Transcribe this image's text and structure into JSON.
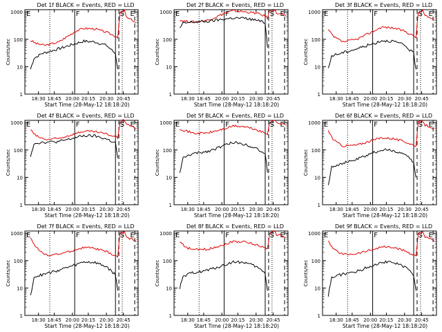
{
  "chart_data": {
    "type": "line",
    "common": {
      "ylabel": "Counts/sec",
      "xlabel": "Start Time (28-May-12 18:18:20)",
      "xticks": [
        "18:30",
        "18:45",
        "20:00",
        "20:15",
        "20:30",
        "20:45"
      ],
      "yticks": [
        "1",
        "10",
        "100",
        "1000"
      ],
      "ylim": [
        1,
        1200
      ],
      "y_scale": "log",
      "markers": [
        "F",
        "S",
        "E"
      ],
      "series_colors": {
        "events": "#000000",
        "lld": "#e00000"
      }
    },
    "panels": [
      {
        "title": "Det 1f BLACK = Events, RED = LLD",
        "events": [
          [
            0.05,
            8
          ],
          [
            0.08,
            20
          ],
          [
            0.15,
            30
          ],
          [
            0.3,
            45
          ],
          [
            0.45,
            70
          ],
          [
            0.52,
            85
          ],
          [
            0.62,
            80
          ],
          [
            0.72,
            60
          ],
          [
            0.8,
            30
          ],
          [
            0.82,
            8
          ]
        ],
        "lld": [
          [
            0.05,
            90
          ],
          [
            0.1,
            70
          ],
          [
            0.18,
            60
          ],
          [
            0.3,
            80
          ],
          [
            0.45,
            200
          ],
          [
            0.52,
            250
          ],
          [
            0.62,
            240
          ],
          [
            0.72,
            180
          ],
          [
            0.8,
            130
          ],
          [
            0.82,
            120
          ],
          [
            0.84,
            900
          ],
          [
            0.88,
            1100
          ],
          [
            0.9,
            600
          ],
          [
            0.95,
            500
          ],
          [
            0.98,
            400
          ]
        ]
      },
      {
        "title": "Det 2f BLACK = Events, RED = LLD",
        "events": [
          [
            0.05,
            250
          ],
          [
            0.08,
            380
          ],
          [
            0.15,
            420
          ],
          [
            0.3,
            450
          ],
          [
            0.45,
            550
          ],
          [
            0.52,
            600
          ],
          [
            0.62,
            580
          ],
          [
            0.72,
            500
          ],
          [
            0.8,
            400
          ],
          [
            0.82,
            50
          ]
        ],
        "lld": [
          [
            0.05,
            500
          ],
          [
            0.1,
            450
          ],
          [
            0.18,
            430
          ],
          [
            0.3,
            500
          ],
          [
            0.45,
            900
          ],
          [
            0.52,
            1100
          ],
          [
            0.62,
            1000
          ],
          [
            0.72,
            900
          ],
          [
            0.8,
            700
          ],
          [
            0.82,
            600
          ],
          [
            0.84,
            1100
          ],
          [
            0.88,
            1200
          ],
          [
            0.9,
            900
          ],
          [
            0.95,
            800
          ],
          [
            0.98,
            700
          ]
        ]
      },
      {
        "title": "Det 3f BLACK = Events, RED = LLD",
        "events": [
          [
            0.05,
            8
          ],
          [
            0.08,
            25
          ],
          [
            0.15,
            30
          ],
          [
            0.3,
            45
          ],
          [
            0.45,
            70
          ],
          [
            0.52,
            90
          ],
          [
            0.62,
            85
          ],
          [
            0.72,
            60
          ],
          [
            0.8,
            30
          ],
          [
            0.82,
            8
          ]
        ],
        "lld": [
          [
            0.05,
            220
          ],
          [
            0.1,
            120
          ],
          [
            0.18,
            80
          ],
          [
            0.3,
            100
          ],
          [
            0.45,
            200
          ],
          [
            0.52,
            280
          ],
          [
            0.62,
            260
          ],
          [
            0.72,
            200
          ],
          [
            0.8,
            130
          ],
          [
            0.82,
            120
          ],
          [
            0.84,
            900
          ],
          [
            0.88,
            1100
          ],
          [
            0.9,
            700
          ],
          [
            0.95,
            600
          ],
          [
            0.98,
            500
          ]
        ]
      },
      {
        "title": "Det 4f BLACK = Events, RED = LLD",
        "events": [
          [
            0.05,
            60
          ],
          [
            0.08,
            170
          ],
          [
            0.15,
            190
          ],
          [
            0.3,
            200
          ],
          [
            0.45,
            280
          ],
          [
            0.52,
            330
          ],
          [
            0.62,
            320
          ],
          [
            0.72,
            250
          ],
          [
            0.8,
            180
          ],
          [
            0.82,
            50
          ]
        ],
        "lld": [
          [
            0.05,
            550
          ],
          [
            0.1,
            320
          ],
          [
            0.18,
            240
          ],
          [
            0.3,
            260
          ],
          [
            0.45,
            400
          ],
          [
            0.52,
            480
          ],
          [
            0.62,
            460
          ],
          [
            0.72,
            380
          ],
          [
            0.8,
            300
          ],
          [
            0.82,
            280
          ],
          [
            0.84,
            1100
          ],
          [
            0.88,
            1200
          ],
          [
            0.9,
            900
          ],
          [
            0.95,
            700
          ],
          [
            0.98,
            600
          ]
        ]
      },
      {
        "title": "Det 5f BLACK = Events, RED = LLD",
        "events": [
          [
            0.05,
            15
          ],
          [
            0.08,
            50
          ],
          [
            0.15,
            70
          ],
          [
            0.3,
            90
          ],
          [
            0.45,
            150
          ],
          [
            0.52,
            190
          ],
          [
            0.62,
            160
          ],
          [
            0.72,
            120
          ],
          [
            0.8,
            70
          ],
          [
            0.82,
            15
          ]
        ],
        "lld": [
          [
            0.05,
            600
          ],
          [
            0.1,
            500
          ],
          [
            0.18,
            400
          ],
          [
            0.3,
            420
          ],
          [
            0.45,
            600
          ],
          [
            0.52,
            750
          ],
          [
            0.62,
            700
          ],
          [
            0.72,
            550
          ],
          [
            0.8,
            400
          ],
          [
            0.82,
            380
          ],
          [
            0.84,
            1100
          ],
          [
            0.88,
            1200
          ],
          [
            0.9,
            1000
          ],
          [
            0.95,
            900
          ],
          [
            0.98,
            800
          ]
        ]
      },
      {
        "title": "Det 6f BLACK = Events, RED = LLD",
        "events": [
          [
            0.05,
            5
          ],
          [
            0.08,
            25
          ],
          [
            0.15,
            30
          ],
          [
            0.3,
            45
          ],
          [
            0.45,
            80
          ],
          [
            0.52,
            100
          ],
          [
            0.62,
            95
          ],
          [
            0.72,
            70
          ],
          [
            0.8,
            35
          ],
          [
            0.82,
            10
          ]
        ],
        "lld": [
          [
            0.05,
            500
          ],
          [
            0.1,
            220
          ],
          [
            0.18,
            140
          ],
          [
            0.3,
            150
          ],
          [
            0.45,
            230
          ],
          [
            0.52,
            280
          ],
          [
            0.62,
            260
          ],
          [
            0.72,
            200
          ],
          [
            0.8,
            150
          ],
          [
            0.82,
            140
          ],
          [
            0.84,
            1000
          ],
          [
            0.88,
            1150
          ],
          [
            0.9,
            800
          ],
          [
            0.95,
            700
          ],
          [
            0.98,
            600
          ]
        ]
      },
      {
        "title": "Det 7f BLACK = Events, RED = LLD",
        "events": [
          [
            0.05,
            5
          ],
          [
            0.08,
            25
          ],
          [
            0.15,
            30
          ],
          [
            0.3,
            45
          ],
          [
            0.45,
            70
          ],
          [
            0.52,
            90
          ],
          [
            0.62,
            85
          ],
          [
            0.72,
            60
          ],
          [
            0.8,
            30
          ],
          [
            0.82,
            8
          ]
        ],
        "lld": [
          [
            0.05,
            700
          ],
          [
            0.1,
            300
          ],
          [
            0.18,
            160
          ],
          [
            0.3,
            170
          ],
          [
            0.45,
            250
          ],
          [
            0.52,
            300
          ],
          [
            0.62,
            280
          ],
          [
            0.72,
            210
          ],
          [
            0.8,
            150
          ],
          [
            0.82,
            140
          ],
          [
            0.84,
            1000
          ],
          [
            0.88,
            1150
          ],
          [
            0.9,
            700
          ],
          [
            0.95,
            600
          ],
          [
            0.98,
            500
          ]
        ]
      },
      {
        "title": "Det 8f BLACK = Events, RED = LLD",
        "events": [
          [
            0.05,
            10
          ],
          [
            0.08,
            25
          ],
          [
            0.15,
            35
          ],
          [
            0.3,
            45
          ],
          [
            0.45,
            70
          ],
          [
            0.52,
            90
          ],
          [
            0.62,
            85
          ],
          [
            0.72,
            60
          ],
          [
            0.8,
            35
          ],
          [
            0.82,
            8
          ]
        ],
        "lld": [
          [
            0.05,
            500
          ],
          [
            0.1,
            300
          ],
          [
            0.18,
            250
          ],
          [
            0.3,
            260
          ],
          [
            0.45,
            400
          ],
          [
            0.52,
            500
          ],
          [
            0.62,
            480
          ],
          [
            0.72,
            380
          ],
          [
            0.8,
            300
          ],
          [
            0.82,
            280
          ],
          [
            0.84,
            1000
          ],
          [
            0.88,
            1150
          ],
          [
            0.9,
            900
          ],
          [
            0.95,
            800
          ],
          [
            0.98,
            700
          ]
        ]
      },
      {
        "title": "Det 9f BLACK = Events, RED = LLD",
        "events": [
          [
            0.05,
            5
          ],
          [
            0.08,
            25
          ],
          [
            0.15,
            30
          ],
          [
            0.3,
            40
          ],
          [
            0.45,
            70
          ],
          [
            0.52,
            90
          ],
          [
            0.62,
            85
          ],
          [
            0.72,
            60
          ],
          [
            0.8,
            30
          ],
          [
            0.82,
            8
          ]
        ],
        "lld": [
          [
            0.05,
            500
          ],
          [
            0.1,
            250
          ],
          [
            0.18,
            170
          ],
          [
            0.3,
            180
          ],
          [
            0.45,
            260
          ],
          [
            0.52,
            320
          ],
          [
            0.62,
            300
          ],
          [
            0.72,
            230
          ],
          [
            0.8,
            160
          ],
          [
            0.82,
            150
          ],
          [
            0.84,
            1000
          ],
          [
            0.88,
            1150
          ],
          [
            0.9,
            700
          ],
          [
            0.95,
            600
          ],
          [
            0.98,
            500
          ]
        ]
      }
    ]
  }
}
